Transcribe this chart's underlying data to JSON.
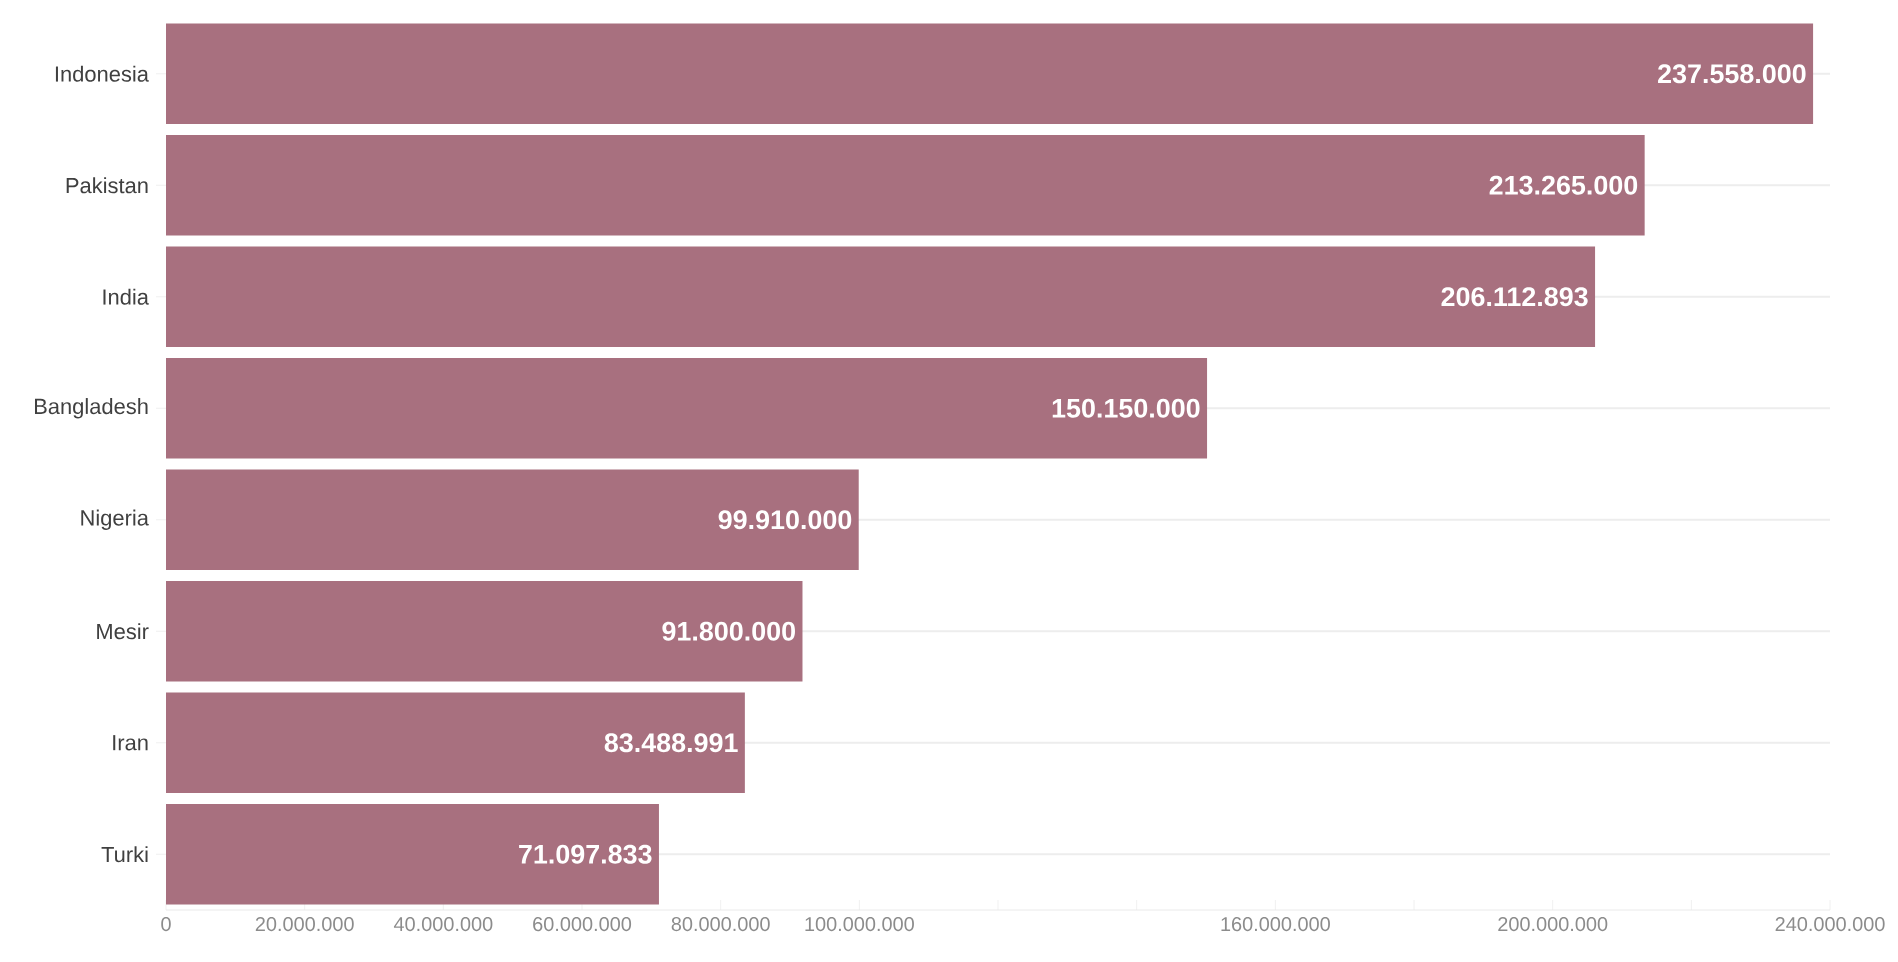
{
  "chart_data": {
    "type": "bar",
    "orientation": "horizontal",
    "categories": [
      "Indonesia",
      "Pakistan",
      "India",
      "Bangladesh",
      "Nigeria",
      "Mesir",
      "Iran",
      "Turki"
    ],
    "values": [
      237558000,
      213265000,
      206112893,
      150150000,
      99910000,
      91800000,
      83488991,
      71097833
    ],
    "value_labels": [
      "237.558.000",
      "213.265.000",
      "206.112.893",
      "150.150.000",
      "99.910.000",
      "91.800.000",
      "83.488.991",
      "71.097.833"
    ],
    "color": "#a8707f",
    "xlim": [
      0,
      240000000
    ],
    "xticks": [
      {
        "value": 0,
        "label": "0"
      },
      {
        "value": 20000000,
        "label": "20.000.000"
      },
      {
        "value": 40000000,
        "label": "40.000.000"
      },
      {
        "value": 60000000,
        "label": "60.000.000"
      },
      {
        "value": 80000000,
        "label": "80.000.000"
      },
      {
        "value": 100000000,
        "label": "100.000.000"
      },
      {
        "value": 120000000,
        "label": null
      },
      {
        "value": 140000000,
        "label": null
      },
      {
        "value": 160000000,
        "label": "160.000.000"
      },
      {
        "value": 180000000,
        "label": null
      },
      {
        "value": 200000000,
        "label": "200.000.000"
      },
      {
        "value": 220000000,
        "label": null
      },
      {
        "value": 240000000,
        "label": "240.000.000"
      }
    ],
    "grid": "y"
  }
}
